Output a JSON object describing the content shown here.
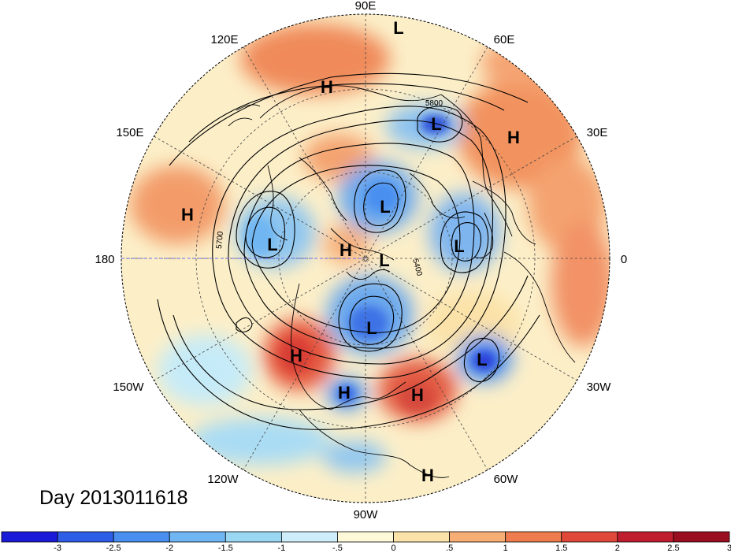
{
  "date_title": "Day 2013011618",
  "longitude_labels": [
    "90E",
    "120E",
    "60E",
    "150E",
    "30E",
    "180",
    "0",
    "150W",
    "30W",
    "120W",
    "60W",
    "90W"
  ],
  "pressure_centers": [
    "L",
    "H",
    "H",
    "L",
    "L",
    "H",
    "L",
    "L",
    "H",
    "L",
    "H",
    "H",
    "L",
    "L",
    "H",
    "H"
  ],
  "contour_labels": [
    "5800",
    "5700",
    "5400"
  ],
  "colorbar": {
    "colors": [
      "#1a1ad9",
      "#2e5ee8",
      "#4a8ff0",
      "#6fb6f2",
      "#9ad7f2",
      "#cdeefa",
      "#fdf8d8",
      "#fbe2a8",
      "#f6ae75",
      "#ee7c4e",
      "#e0483a",
      "#c01e2e",
      "#9a0f20"
    ],
    "tick_labels": [
      "-3",
      "-2.5",
      "-2",
      "-1.5",
      "-1",
      "-.5",
      "0",
      ".5",
      "1",
      "1.5",
      "2",
      "2.5",
      "3"
    ]
  }
}
